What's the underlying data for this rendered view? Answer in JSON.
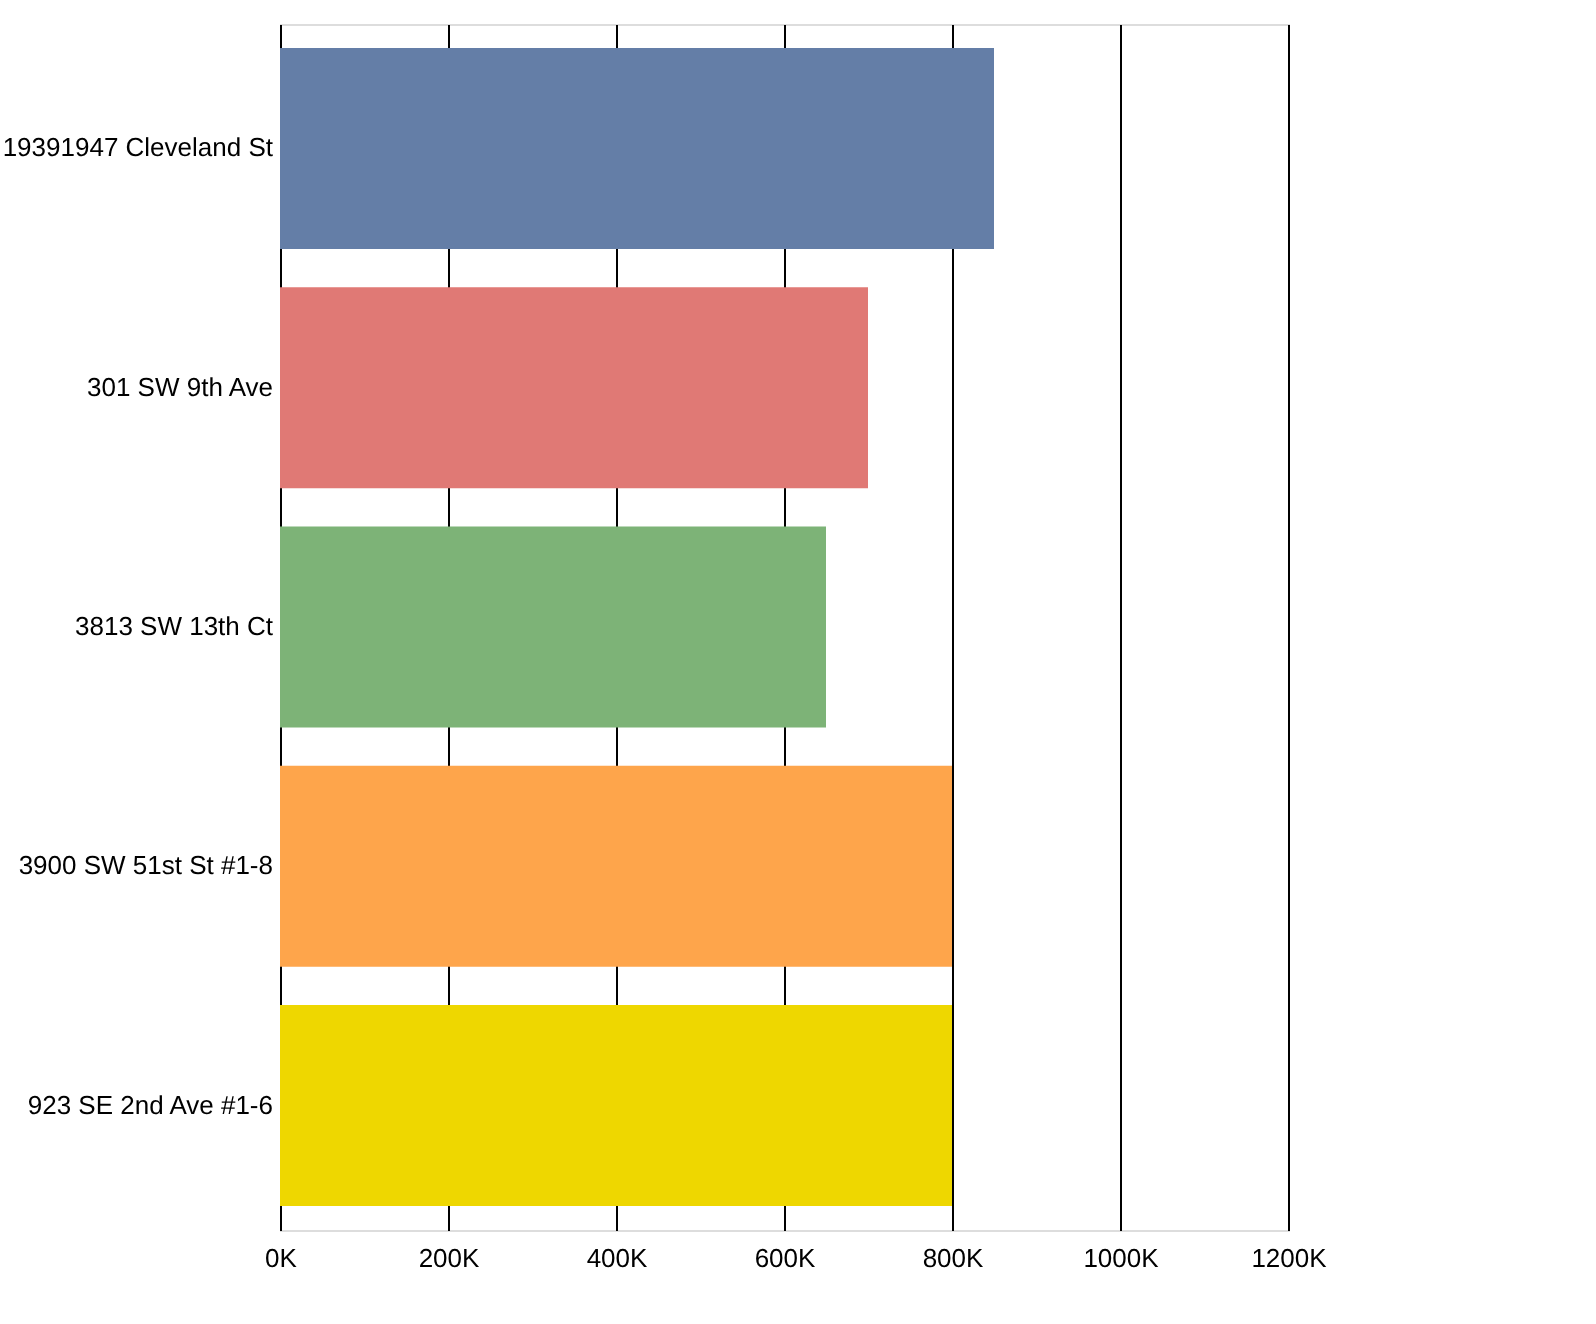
{
  "chart_data": {
    "type": "bar",
    "orientation": "horizontal",
    "categories": [
      "19391947 Cleveland St",
      "301 SW 9th Ave",
      "3813 SW 13th Ct",
      "3900 SW 51st St #1-8",
      "923 SE 2nd Ave #1-6"
    ],
    "values": [
      850,
      700,
      650,
      800,
      800
    ],
    "colors": [
      "#647ea7",
      "#e07975",
      "#7db377",
      "#fea54b",
      "#eed700"
    ],
    "xlim": [
      0,
      1200
    ],
    "xticks": [
      {
        "value": 0,
        "label": "0K"
      },
      {
        "value": 200,
        "label": "200K"
      },
      {
        "value": 400,
        "label": "400K"
      },
      {
        "value": 600,
        "label": "600K"
      },
      {
        "value": 800,
        "label": "800K"
      },
      {
        "value": 1000,
        "label": "1000K"
      },
      {
        "value": 1200,
        "label": "1200K"
      }
    ],
    "grid": "x",
    "legend": false
  }
}
